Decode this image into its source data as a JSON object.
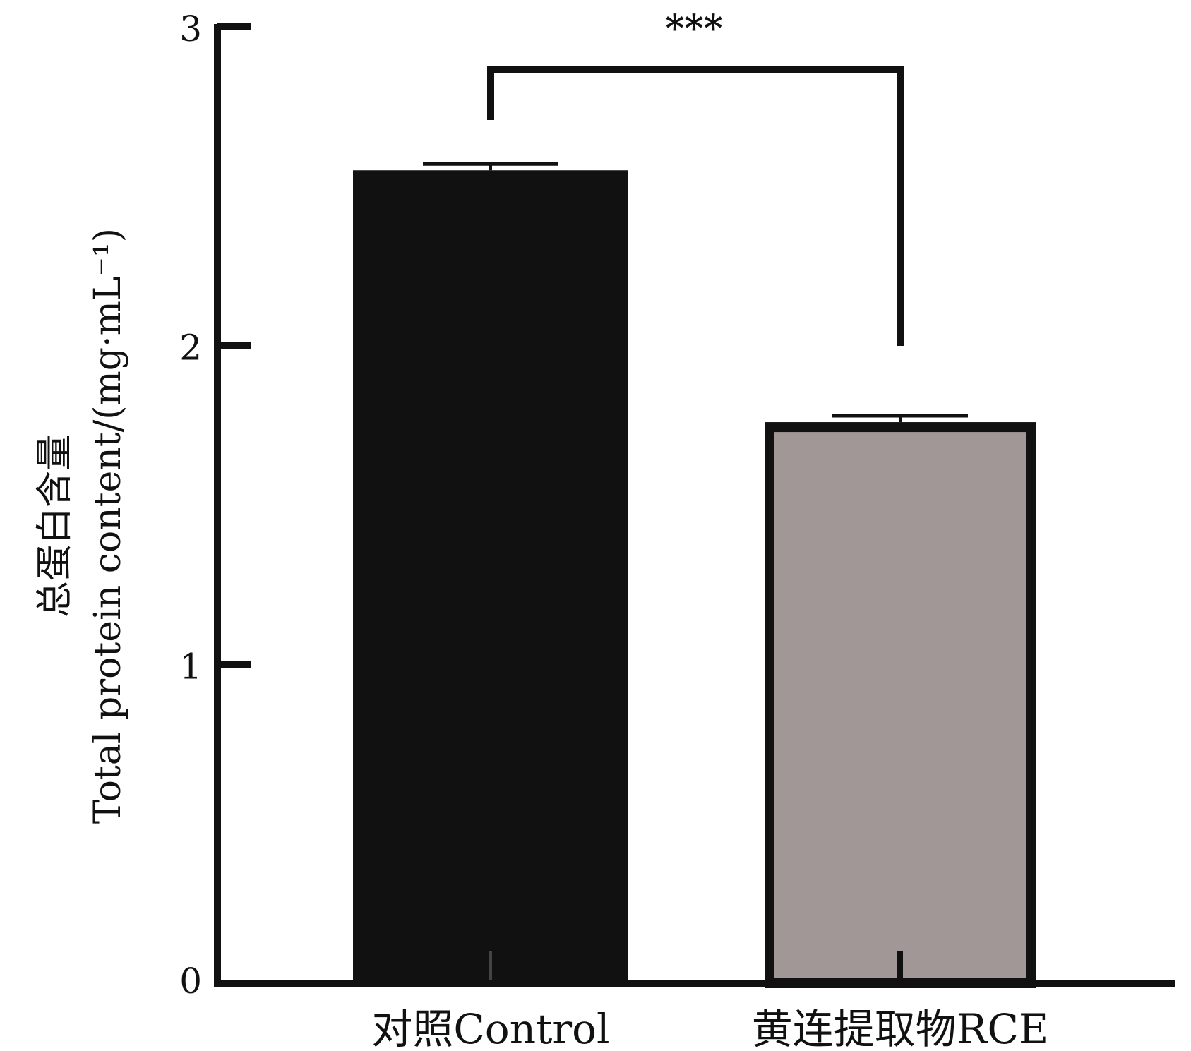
{
  "chart_data": {
    "type": "bar",
    "title": "",
    "categories": [
      "对照Control",
      "黄连提取物RCE"
    ],
    "values": [
      2.55,
      1.76
    ],
    "errors": [
      0.02,
      0.02
    ],
    "ylabel_line1": "总蛋白含量",
    "ylabel_line2": "Total protein content/(mg·mL⁻¹)",
    "xlabel": "",
    "ylim": [
      0,
      3
    ],
    "yticks": [
      "0",
      "1",
      "2",
      "3"
    ],
    "grid": false,
    "significance": {
      "label": "***",
      "between": [
        0,
        1
      ]
    },
    "colors": {
      "control_fill": "#111111",
      "rce_fill": "#a09796",
      "rce_border": "#111111",
      "axis": "#111111"
    }
  }
}
